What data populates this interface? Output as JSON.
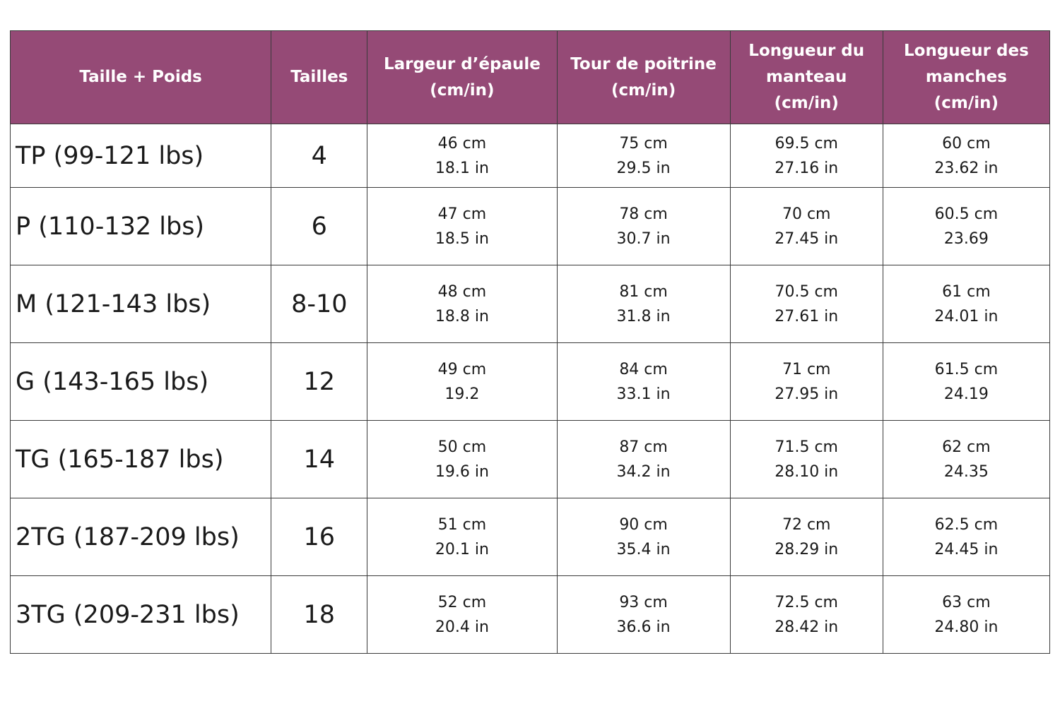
{
  "colors": {
    "header_bg": "#954a76",
    "header_text": "#ffffff",
    "border": "#3a3a3a"
  },
  "headers": [
    "Taille + Poids",
    "Tailles",
    "Largeur d’épaule\n(cm/in)",
    "Tour de poitrine\n(cm/in)",
    "Longueur du\nmanteau\n(cm/in)",
    "Longueur des\nmanches\n(cm/in)"
  ],
  "rows": [
    {
      "label": "TP (99-121 lbs)",
      "size": "4",
      "shoulder": [
        "46 cm",
        "18.1 in"
      ],
      "chest": [
        "75 cm",
        "29.5 in"
      ],
      "coat_length": [
        "69.5 cm",
        "27.16 in"
      ],
      "sleeve_length": [
        "60 cm",
        "23.62 in"
      ]
    },
    {
      "label": "P (110-132 lbs)",
      "size": "6",
      "shoulder": [
        "47 cm",
        "18.5 in"
      ],
      "chest": [
        "78 cm",
        "30.7 in"
      ],
      "coat_length": [
        "70 cm",
        "27.45 in"
      ],
      "sleeve_length": [
        "60.5 cm",
        "23.69"
      ]
    },
    {
      "label": "M (121-143 lbs)",
      "size": "8-10",
      "shoulder": [
        "48 cm",
        "18.8 in"
      ],
      "chest": [
        "81 cm",
        "31.8 in"
      ],
      "coat_length": [
        "70.5 cm",
        "27.61 in"
      ],
      "sleeve_length": [
        "61 cm",
        "24.01 in"
      ]
    },
    {
      "label": "G (143-165 lbs)",
      "size": "12",
      "shoulder": [
        "49 cm",
        "19.2"
      ],
      "chest": [
        "84 cm",
        "33.1 in"
      ],
      "coat_length": [
        "71 cm",
        "27.95 in"
      ],
      "sleeve_length": [
        "61.5 cm",
        "24.19"
      ]
    },
    {
      "label": "TG (165-187 lbs)",
      "size": "14",
      "shoulder": [
        "50 cm",
        "19.6 in"
      ],
      "chest": [
        "87 cm",
        "34.2 in"
      ],
      "coat_length": [
        "71.5 cm",
        "28.10 in"
      ],
      "sleeve_length": [
        "62 cm",
        "24.35"
      ]
    },
    {
      "label": "2TG (187-209 lbs)",
      "size": "16",
      "shoulder": [
        "51 cm",
        "20.1 in"
      ],
      "chest": [
        "90 cm",
        "35.4 in"
      ],
      "coat_length": [
        "72 cm",
        "28.29 in"
      ],
      "sleeve_length": [
        "62.5 cm",
        "24.45 in"
      ]
    },
    {
      "label": "3TG (209-231 lbs)",
      "size": "18",
      "shoulder": [
        "52 cm",
        "20.4 in"
      ],
      "chest": [
        "93 cm",
        "36.6 in"
      ],
      "coat_length": [
        "72.5 cm",
        "28.42 in"
      ],
      "sleeve_length": [
        "63 cm",
        "24.80 in"
      ]
    }
  ]
}
